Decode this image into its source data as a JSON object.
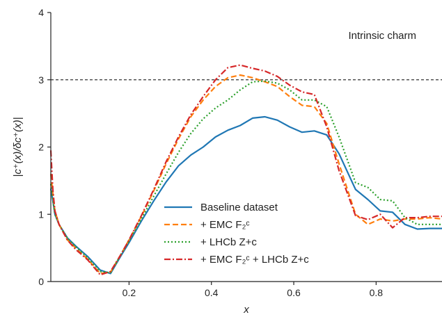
{
  "chart_data": {
    "type": "line",
    "title": "",
    "annotation": "Intrinsic charm",
    "xlabel": "x",
    "ylabel": "|c⁺(x)/δc⁺(x)|",
    "xlim": [
      0.01,
      0.96
    ],
    "ylim": [
      0,
      4
    ],
    "xticks": [
      0.2,
      0.4,
      0.6,
      0.8
    ],
    "xtick_labels": [
      "0.2",
      "0.4",
      "0.6",
      "0.8"
    ],
    "yticks": [
      0,
      1,
      2,
      3,
      4
    ],
    "ytick_labels": [
      "0",
      "1",
      "2",
      "3",
      "4"
    ],
    "grid": false,
    "legend_position": "lower-center",
    "reference_line": {
      "y": 3,
      "style": "dashed",
      "color": "#333333"
    },
    "series": [
      {
        "name": "Baseline dataset",
        "color": "#1f77b4",
        "dash": "solid",
        "x": [
          0.01,
          0.015,
          0.02,
          0.03,
          0.05,
          0.07,
          0.1,
          0.13,
          0.155,
          0.18,
          0.2,
          0.23,
          0.26,
          0.29,
          0.32,
          0.35,
          0.38,
          0.41,
          0.44,
          0.47,
          0.5,
          0.53,
          0.56,
          0.59,
          0.62,
          0.65,
          0.68,
          0.71,
          0.75,
          0.78,
          0.81,
          0.84,
          0.87,
          0.9,
          0.93,
          0.96
        ],
        "y": [
          1.38,
          1.2,
          1.0,
          0.85,
          0.65,
          0.53,
          0.37,
          0.17,
          0.12,
          0.38,
          0.58,
          0.9,
          1.2,
          1.48,
          1.72,
          1.88,
          2.0,
          2.15,
          2.25,
          2.32,
          2.43,
          2.45,
          2.4,
          2.3,
          2.22,
          2.24,
          2.18,
          1.9,
          1.37,
          1.22,
          1.05,
          1.03,
          0.85,
          0.78,
          0.79,
          0.79
        ]
      },
      {
        "name": "+ EMC F₂ᶜ",
        "color": "#ff7f0e",
        "dash": "dashed",
        "x": [
          0.01,
          0.015,
          0.02,
          0.03,
          0.05,
          0.07,
          0.1,
          0.13,
          0.155,
          0.18,
          0.2,
          0.23,
          0.26,
          0.29,
          0.32,
          0.35,
          0.38,
          0.41,
          0.44,
          0.47,
          0.5,
          0.53,
          0.56,
          0.59,
          0.62,
          0.65,
          0.68,
          0.71,
          0.75,
          0.78,
          0.81,
          0.84,
          0.87,
          0.9,
          0.93,
          0.96
        ],
        "y": [
          1.6,
          1.3,
          1.05,
          0.85,
          0.62,
          0.5,
          0.33,
          0.12,
          0.14,
          0.4,
          0.62,
          0.97,
          1.35,
          1.75,
          2.12,
          2.45,
          2.7,
          2.9,
          3.03,
          3.07,
          3.03,
          2.97,
          2.9,
          2.75,
          2.62,
          2.6,
          2.35,
          1.75,
          1.0,
          0.85,
          0.93,
          0.9,
          0.93,
          0.93,
          0.95,
          0.93
        ]
      },
      {
        "name": "+ LHCb Z+c",
        "color": "#2ca02c",
        "dash": "dotted",
        "x": [
          0.01,
          0.015,
          0.02,
          0.03,
          0.05,
          0.07,
          0.1,
          0.13,
          0.155,
          0.18,
          0.2,
          0.23,
          0.26,
          0.29,
          0.32,
          0.35,
          0.38,
          0.41,
          0.44,
          0.47,
          0.5,
          0.53,
          0.56,
          0.59,
          0.62,
          0.65,
          0.68,
          0.71,
          0.75,
          0.78,
          0.81,
          0.84,
          0.87,
          0.9,
          0.93,
          0.96
        ],
        "y": [
          1.45,
          1.2,
          1.0,
          0.85,
          0.65,
          0.52,
          0.35,
          0.15,
          0.13,
          0.4,
          0.6,
          0.93,
          1.27,
          1.6,
          1.92,
          2.2,
          2.42,
          2.58,
          2.7,
          2.85,
          2.97,
          2.98,
          2.95,
          2.85,
          2.7,
          2.7,
          2.6,
          2.15,
          1.47,
          1.4,
          1.22,
          1.2,
          0.95,
          0.85,
          0.85,
          0.85
        ]
      },
      {
        "name": "+ EMC F₂ᶜ + LHCb Z+c",
        "color": "#d62728",
        "dash": "dashdot",
        "x": [
          0.01,
          0.015,
          0.02,
          0.03,
          0.05,
          0.07,
          0.1,
          0.13,
          0.155,
          0.18,
          0.2,
          0.23,
          0.26,
          0.29,
          0.32,
          0.35,
          0.38,
          0.41,
          0.44,
          0.47,
          0.5,
          0.53,
          0.56,
          0.59,
          0.62,
          0.65,
          0.68,
          0.71,
          0.75,
          0.78,
          0.81,
          0.84,
          0.87,
          0.9,
          0.93,
          0.96
        ],
        "y": [
          1.95,
          1.35,
          1.05,
          0.85,
          0.62,
          0.48,
          0.32,
          0.1,
          0.15,
          0.4,
          0.62,
          0.98,
          1.37,
          1.78,
          2.15,
          2.48,
          2.75,
          3.0,
          3.18,
          3.22,
          3.17,
          3.13,
          3.05,
          2.92,
          2.82,
          2.78,
          2.3,
          1.65,
          0.98,
          0.92,
          1.0,
          0.8,
          0.95,
          0.95,
          0.97,
          0.97
        ]
      }
    ]
  }
}
